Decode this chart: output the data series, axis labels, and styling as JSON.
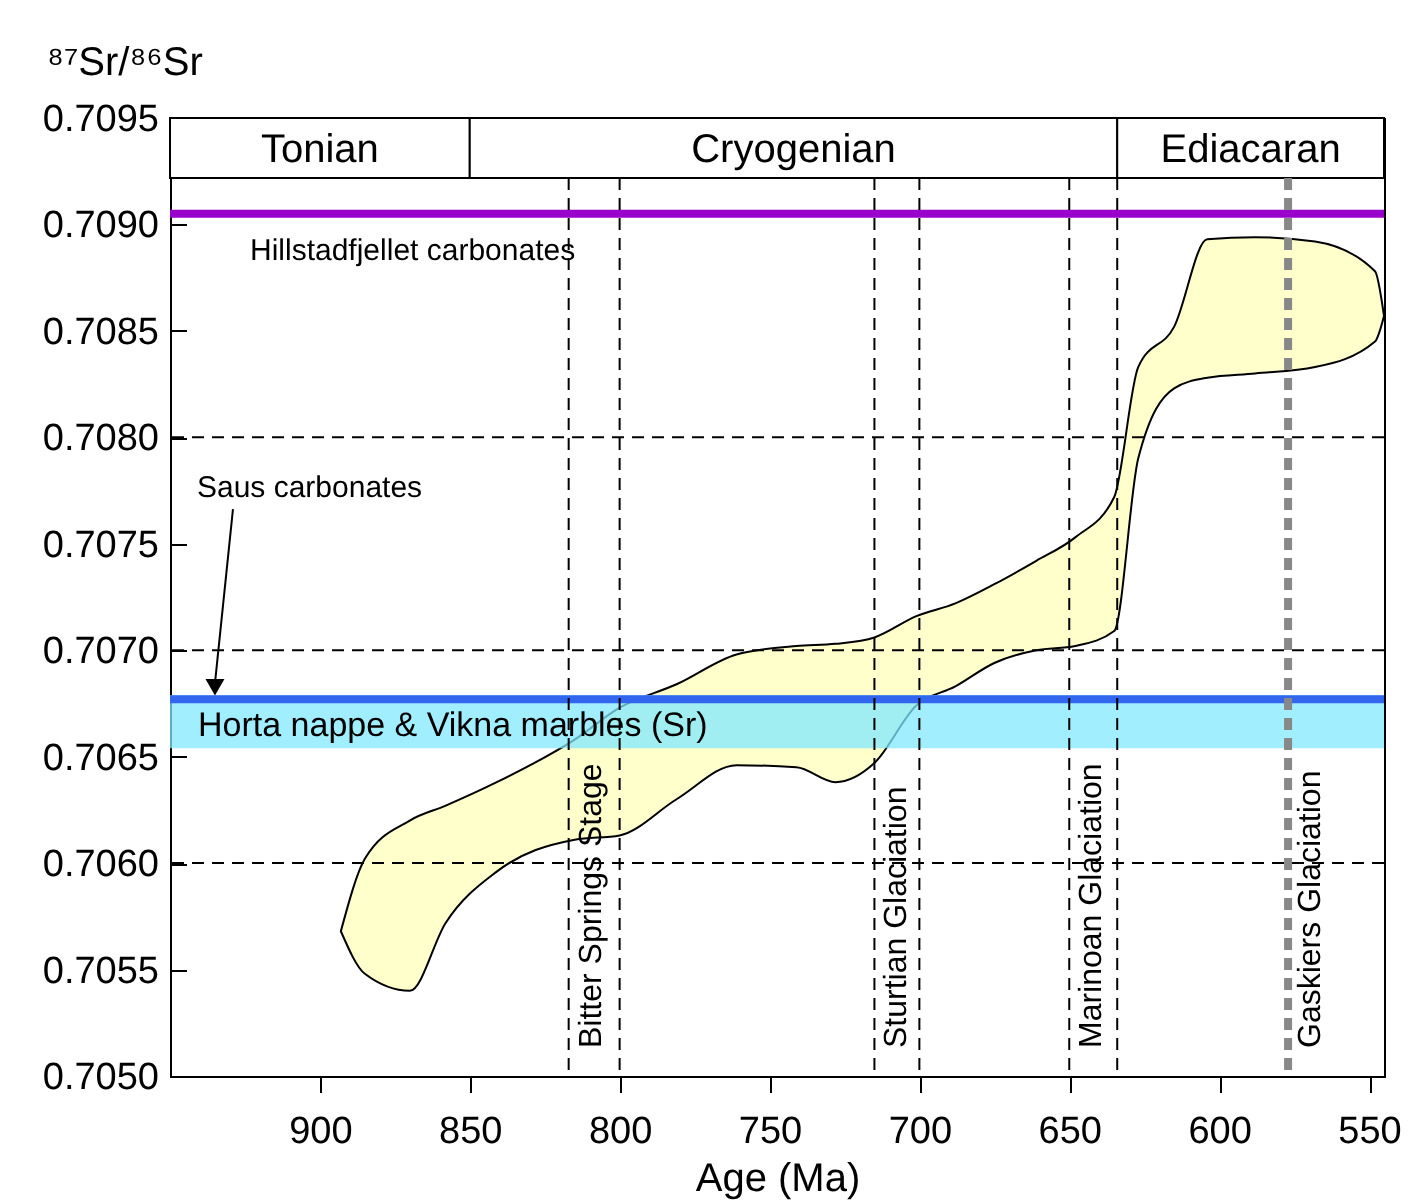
{
  "chart_data": {
    "type": "area",
    "xlabel": "Age (Ma)",
    "ylabel": "⁸⁷Sr/⁸⁶Sr",
    "xlim": [
      950,
      545
    ],
    "xticks": [
      900,
      850,
      800,
      750,
      700,
      650,
      600,
      550
    ],
    "ylim": [
      0.705,
      0.7095
    ],
    "yticks": [
      {
        "value": 0.705,
        "label": "0.7050"
      },
      0.7055,
      {
        "value": 0.706,
        "label": "0.7060"
      },
      0.7065,
      {
        "value": 0.707,
        "label": "0.7070"
      },
      0.7075,
      {
        "value": 0.708,
        "label": "0.7080"
      },
      0.7085,
      {
        "value": 0.709,
        "label": "0.7090"
      },
      0.7095
    ],
    "series": [
      {
        "color": "#ffffcc",
        "values": [
          null,
          null,
          null,
          null,
          null,
          null,
          null,
          null,
          null,
          null,
          null,
          null,
          null,
          null,
          null,
          null,
          null,
          null,
          null,
          null,
          null,
          null,
          null,
          null,
          null
        ],
        "x": [
          893,
          885,
          870,
          858,
          841,
          815,
          800,
          781,
          761,
          741,
          728,
          715,
          701,
          688,
          675,
          661,
          648,
          635,
          627,
          615,
          604,
          588,
          568,
          548,
          545
        ],
        "lower": [
          0.70568,
          0.70548,
          0.7054,
          0.70572,
          0.70596,
          0.70611,
          0.70613,
          0.7063,
          0.70646,
          0.70645,
          0.70638,
          0.70647,
          0.70674,
          0.70683,
          0.70694,
          0.707,
          0.70702,
          0.70709,
          0.7079,
          0.70823,
          0.70828,
          0.7083,
          0.70833,
          0.70845,
          0.70857
        ],
        "upper": [
          0.70568,
          0.70602,
          0.7062,
          0.70627,
          0.70638,
          0.70658,
          0.70673,
          0.70684,
          0.70698,
          0.70702,
          0.70703,
          0.70706,
          0.70716,
          0.70722,
          0.70731,
          0.70742,
          0.70753,
          0.70772,
          0.70833,
          0.70852,
          0.70893,
          0.70894,
          0.70892,
          0.70878,
          0.70857
        ]
      }
    ],
    "bands": [
      {
        "axis": "y",
        "from": 0.70654,
        "to": 0.70679,
        "label": "Horta nappe & Vikna marbles (Sr)",
        "color": "#80e8ff"
      },
      {
        "axis": "x",
        "from": 950,
        "to": 850,
        "label": "Tonian"
      },
      {
        "axis": "x",
        "from": 850,
        "to": 634,
        "label": "Cryogenian"
      },
      {
        "axis": "x",
        "from": 634,
        "to": 545,
        "label": "Ediacaran"
      }
    ],
    "ref_lines": [
      {
        "axis": "y",
        "value": 0.706,
        "label": null,
        "line_style": "dashed"
      },
      {
        "axis": "y",
        "value": 0.707,
        "label": null,
        "line_style": "dashed"
      },
      {
        "axis": "y",
        "value": 0.708,
        "label": null,
        "line_style": "dashed"
      },
      {
        "axis": "y",
        "value": 0.70905,
        "label": "Hillstadfjellet carbonates",
        "color": "#9900cc",
        "line_style": "solid"
      },
      {
        "axis": "y",
        "value": 0.70677,
        "label": null,
        "color": "#3366ee",
        "line_style": "solid"
      },
      {
        "axis": "x",
        "value": 817,
        "label": "Bitter Springs Stage",
        "line_style": "dashed"
      },
      {
        "axis": "x",
        "value": 800,
        "label": null,
        "line_style": "dashed"
      },
      {
        "axis": "x",
        "value": 715,
        "label": "Sturtian Glaciation",
        "line_style": "dashed"
      },
      {
        "axis": "x",
        "value": 700,
        "label": null,
        "line_style": "dashed"
      },
      {
        "axis": "x",
        "value": 650,
        "label": "Marinoan Glaciation",
        "line_style": "dashed"
      },
      {
        "axis": "x",
        "value": 634,
        "label": null,
        "line_style": "dashed"
      },
      {
        "axis": "x",
        "value": 577,
        "label": "Gaskiers Glaciation",
        "color": "#888888",
        "line_style": "dashed"
      }
    ],
    "annotations": [
      {
        "text": "Saus carbonates",
        "x": 935,
        "y": 0.70677
      }
    ]
  }
}
